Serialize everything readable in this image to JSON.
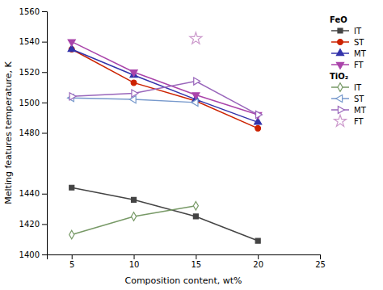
{
  "chart_data": {
    "type": "line",
    "xlabel": "Composition content, wt%",
    "ylabel": "Melting features temperature, K",
    "xlim": [
      3,
      25
    ],
    "ylim": [
      1400,
      1560
    ],
    "xticks": [
      5,
      10,
      15,
      20,
      25
    ],
    "yticks": [
      1400,
      1420,
      1440,
      1480,
      1500,
      1520,
      1540,
      1560
    ],
    "grid": false,
    "legend": "right",
    "series": [
      {
        "name": "IT",
        "group": "FeO",
        "color": "#444444",
        "marker": "square",
        "line_style": "solid",
        "x": [
          5,
          10,
          15,
          20
        ],
        "values": [
          1444,
          1436,
          1425,
          1409
        ]
      },
      {
        "name": "ST",
        "group": "FeO",
        "color": "#cc2200",
        "marker": "circle",
        "line_style": "solid",
        "x": [
          5,
          10,
          15,
          20
        ],
        "values": [
          1535,
          1513,
          1501,
          1483
        ]
      },
      {
        "name": "MT",
        "group": "FeO",
        "color": "#3333aa",
        "marker": "triangle-up",
        "line_style": "solid",
        "x": [
          5,
          10,
          15,
          20
        ],
        "values": [
          1535,
          1518,
          1502,
          1487
        ]
      },
      {
        "name": "FT",
        "group": "FeO",
        "color": "#aa44aa",
        "marker": "triangle-down",
        "line_style": "solid",
        "x": [
          5,
          10,
          15,
          20
        ],
        "values": [
          1540,
          1520,
          1505,
          1492
        ]
      },
      {
        "name": "IT",
        "group": "TiO₂",
        "color": "#779966",
        "marker": "open-diamond",
        "line_style": "solid",
        "x": [
          5,
          10,
          15
        ],
        "values": [
          1413,
          1425,
          1432
        ]
      },
      {
        "name": "ST",
        "group": "TiO₂",
        "color": "#7799cc",
        "marker": "open-triangle-left",
        "line_style": "solid",
        "x": [
          5,
          10,
          15
        ],
        "values": [
          1503,
          1502,
          1500
        ]
      },
      {
        "name": "MT",
        "group": "TiO₂",
        "color": "#9966bb",
        "marker": "open-triangle-right",
        "line_style": "solid",
        "x": [
          5,
          10,
          15,
          20
        ],
        "values": [
          1504,
          1506,
          1514,
          1492
        ]
      },
      {
        "name": "FT",
        "group": "TiO₂",
        "color": "#cc99cc",
        "marker": "open-star",
        "line_style": "none",
        "x": [
          15
        ],
        "values": [
          1542
        ]
      }
    ]
  }
}
